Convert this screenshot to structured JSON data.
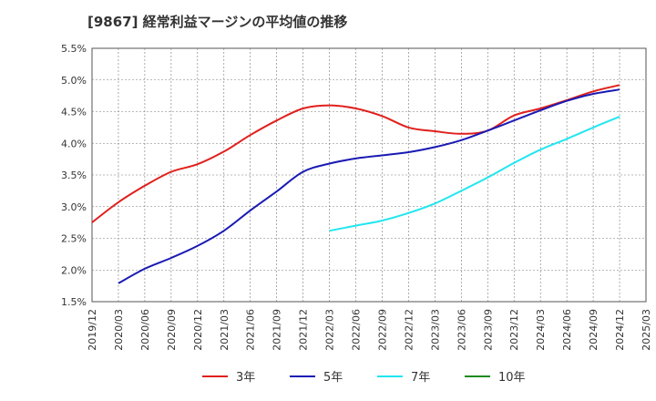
{
  "chart_data": {
    "type": "line",
    "title": "[9867]  経常利益マージンの平均値の推移",
    "x_ticks": [
      "2019/12",
      "2020/03",
      "2020/06",
      "2020/09",
      "2020/12",
      "2021/03",
      "2021/06",
      "2021/09",
      "2021/12",
      "2022/03",
      "2022/06",
      "2022/09",
      "2022/12",
      "2023/03",
      "2023/06",
      "2023/09",
      "2023/12",
      "2024/03",
      "2024/06",
      "2024/09",
      "2024/12",
      "2025/03"
    ],
    "y_ticks": [
      "1.5%",
      "2.0%",
      "2.5%",
      "3.0%",
      "3.5%",
      "4.0%",
      "4.5%",
      "5.0%",
      "5.5%"
    ],
    "ylim": [
      1.5,
      5.5
    ],
    "y_unit": "%",
    "grid": true,
    "legend_position": "bottom",
    "series": [
      {
        "name": "3年",
        "color": "#e0201c",
        "x": [
          "2019/12",
          "2020/03",
          "2020/06",
          "2020/09",
          "2020/12",
          "2021/03",
          "2021/06",
          "2021/09",
          "2021/12",
          "2022/03",
          "2022/06",
          "2022/09",
          "2022/12",
          "2023/03",
          "2023/06",
          "2023/09",
          "2023/12",
          "2024/03",
          "2024/06",
          "2024/09",
          "2024/12"
        ],
        "values": [
          2.75,
          3.07,
          3.33,
          3.55,
          3.67,
          3.87,
          4.13,
          4.36,
          4.55,
          4.6,
          4.55,
          4.43,
          4.25,
          4.19,
          4.15,
          4.2,
          4.44,
          4.55,
          4.68,
          4.82,
          4.92
        ]
      },
      {
        "name": "5年",
        "color": "#1a1ab4",
        "x": [
          "2020/03",
          "2020/06",
          "2020/09",
          "2020/12",
          "2021/03",
          "2021/06",
          "2021/09",
          "2021/12",
          "2022/03",
          "2022/06",
          "2022/09",
          "2022/12",
          "2023/03",
          "2023/06",
          "2023/09",
          "2023/12",
          "2024/03",
          "2024/06",
          "2024/09",
          "2024/12"
        ],
        "values": [
          1.79,
          2.02,
          2.19,
          2.38,
          2.62,
          2.94,
          3.24,
          3.55,
          3.68,
          3.76,
          3.81,
          3.86,
          3.94,
          4.05,
          4.2,
          4.36,
          4.52,
          4.67,
          4.78,
          4.85
        ]
      },
      {
        "name": "7年",
        "color": "#22e6ef",
        "x": [
          "2022/03",
          "2022/06",
          "2022/09",
          "2022/12",
          "2023/03",
          "2023/06",
          "2023/09",
          "2023/12",
          "2024/03",
          "2024/06",
          "2024/09",
          "2024/12"
        ],
        "values": [
          2.62,
          2.7,
          2.78,
          2.9,
          3.05,
          3.25,
          3.46,
          3.69,
          3.9,
          4.07,
          4.25,
          4.42
        ]
      },
      {
        "name": "10年",
        "color": "#1f8a1f",
        "x": [],
        "values": []
      }
    ]
  }
}
